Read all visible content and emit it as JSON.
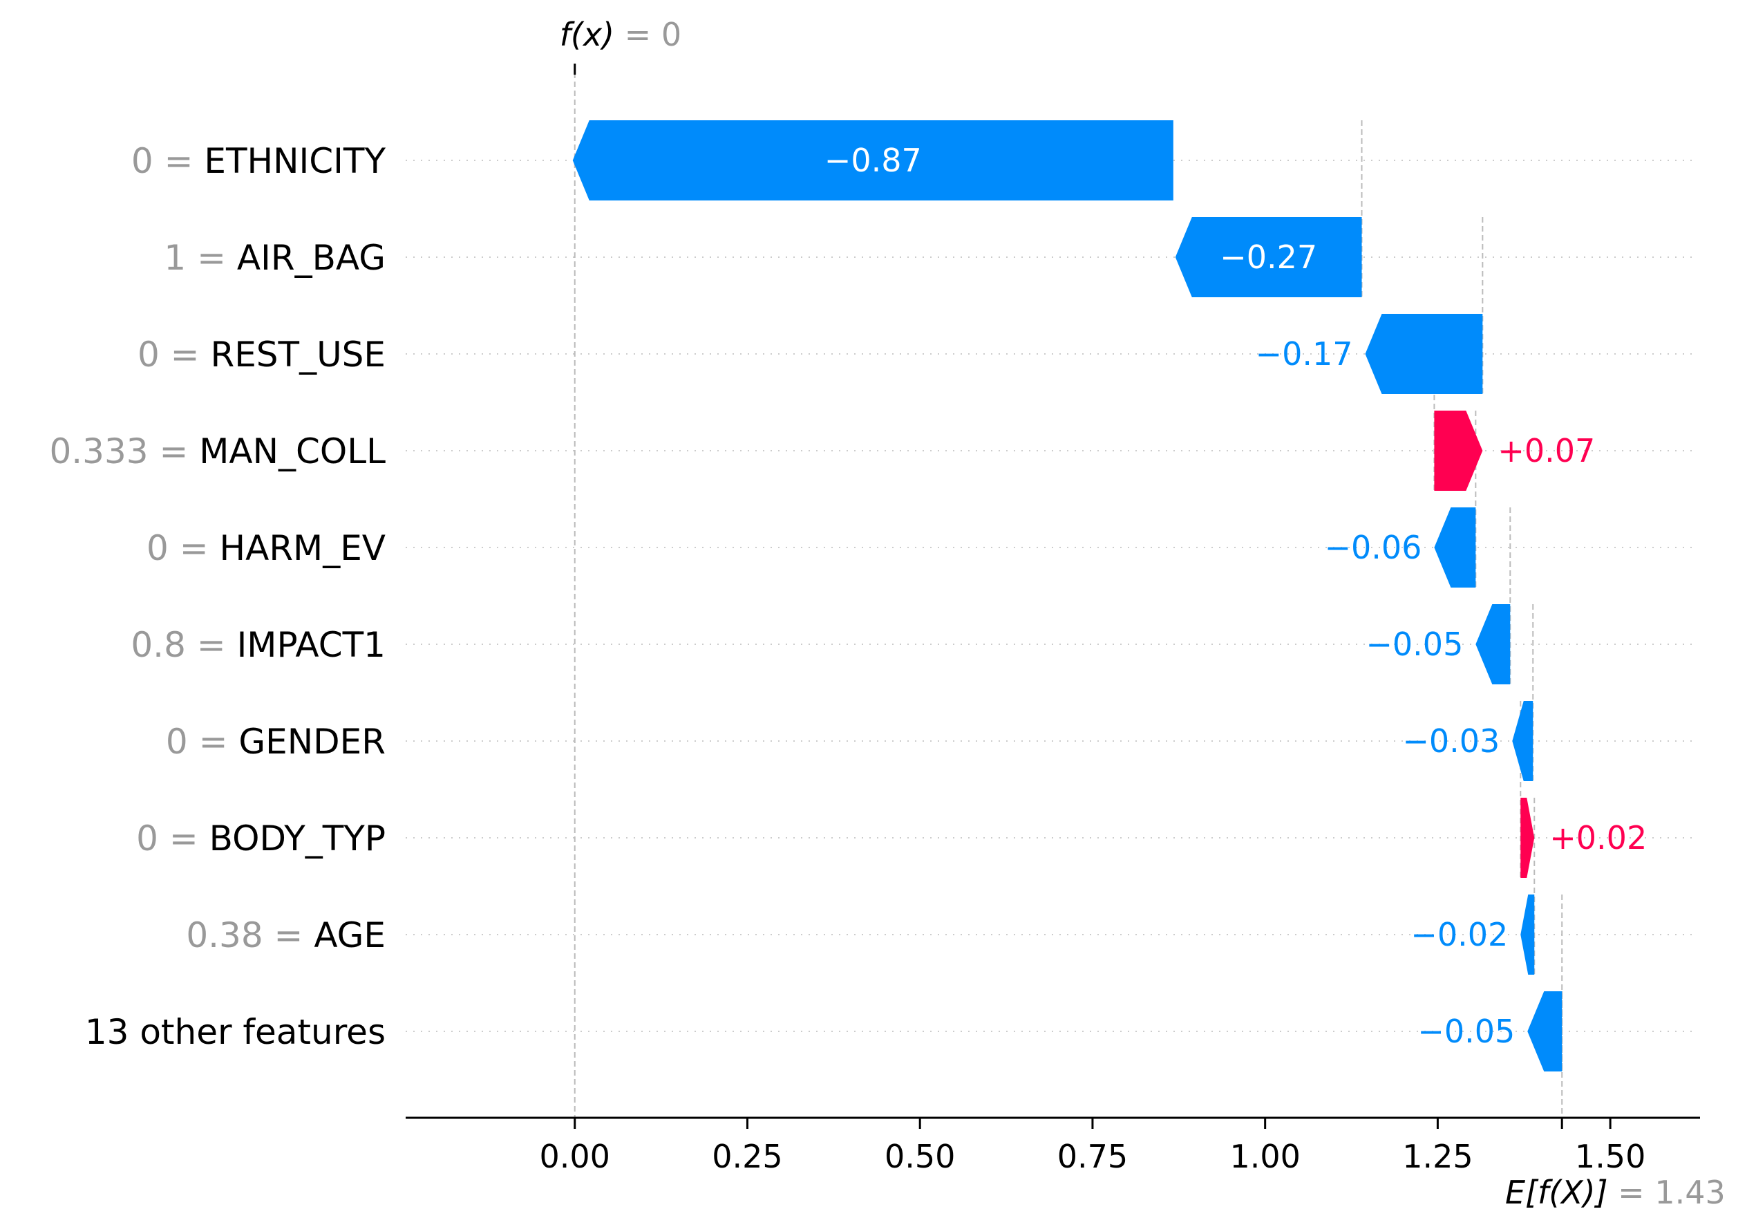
{
  "chart_data": {
    "type": "waterfall",
    "fx_label": {
      "name": "f(x)",
      "value_text": "0",
      "value": 0
    },
    "base_label": {
      "name": "E[f(X)]",
      "value_text": "1.43",
      "value": 1.43
    },
    "features": [
      {
        "value_text": "0",
        "name": "ETHNICITY",
        "shap": -0.87,
        "shap_text": "−0.87",
        "start": 0.867
      },
      {
        "value_text": "1",
        "name": "AIR_BAG",
        "shap": -0.27,
        "shap_text": "−0.27",
        "start": 1.14
      },
      {
        "value_text": "0",
        "name": "REST_USE",
        "shap": -0.17,
        "shap_text": "−0.17",
        "start": 1.315
      },
      {
        "value_text": "0.333",
        "name": "MAN_COLL",
        "shap": 0.07,
        "shap_text": "+0.07",
        "start": 1.245
      },
      {
        "value_text": "0",
        "name": "HARM_EV",
        "shap": -0.06,
        "shap_text": "−0.06",
        "start": 1.305
      },
      {
        "value_text": "0.8",
        "name": "IMPACT1",
        "shap": -0.05,
        "shap_text": "−0.05",
        "start": 1.355
      },
      {
        "value_text": "0",
        "name": "GENDER",
        "shap": -0.03,
        "shap_text": "−0.03",
        "start": 1.388
      },
      {
        "value_text": "0",
        "name": "BODY_TYP",
        "shap": 0.02,
        "shap_text": "+0.02",
        "start": 1.37
      },
      {
        "value_text": "0.38",
        "name": "AGE",
        "shap": -0.02,
        "shap_text": "−0.02",
        "start": 1.39
      },
      {
        "value_text": "",
        "name": "13 other features",
        "shap": -0.05,
        "shap_text": "−0.05",
        "start": 1.43
      }
    ],
    "x_ticks": [
      "0.00",
      "0.25",
      "0.50",
      "0.75",
      "1.00",
      "1.25",
      "1.50"
    ],
    "x_tick_values": [
      0,
      0.25,
      0.5,
      0.75,
      1.0,
      1.25,
      1.5
    ],
    "xlim": [
      -0.245,
      1.63
    ],
    "colors": {
      "negative": "#008bfb",
      "positive": "#ff0051",
      "feature_value": "#999999",
      "feature_name": "#000000",
      "axis": "#000000",
      "grid": "#cccccc",
      "guide": "#bbbbbb"
    }
  }
}
